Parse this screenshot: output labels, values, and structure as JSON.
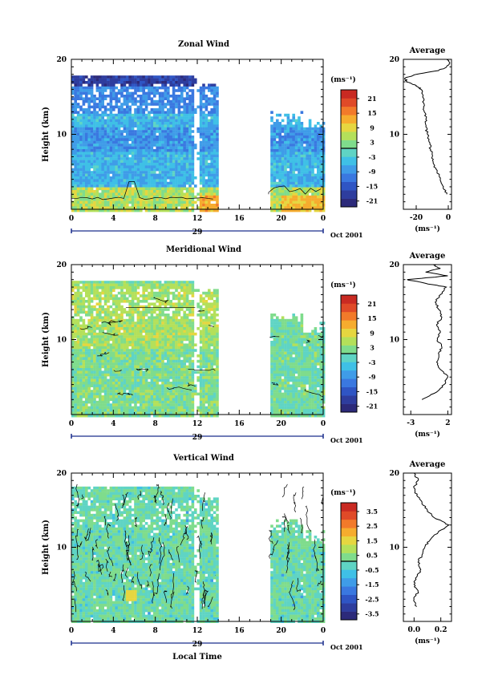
{
  "chart_data": [
    {
      "type": "heatmap",
      "title": "Zonal Wind",
      "ylabel": "Height (km)",
      "ylim": [
        0,
        20
      ],
      "xlim": [
        0,
        24
      ],
      "x_ticks": [
        "0",
        "4",
        "8",
        "12",
        "16",
        "20",
        "0"
      ],
      "y_ticks": [
        "20",
        "10"
      ],
      "date_label": "29",
      "month_label": "Oct 2001",
      "colorbar": {
        "unit": "(ms⁻¹)",
        "ticks": [
          "21",
          "15",
          "9",
          "3",
          "-3",
          "-9",
          "-15",
          "-21"
        ],
        "range": [
          -24,
          24
        ],
        "zero_line": true
      },
      "data_gaps_hours": [
        [
          13.8,
          18.8
        ]
      ],
      "profile": {
        "title": "Average",
        "xlabel": "(ms⁻¹)",
        "x_ticks": [
          "-20",
          "0"
        ],
        "xlim": [
          -28,
          2
        ],
        "y_ticks": [
          "20",
          "10"
        ],
        "heights_km": [
          2,
          3,
          4,
          5,
          6,
          7,
          8,
          9,
          10,
          11,
          12,
          13,
          14,
          15,
          16,
          16.5,
          17,
          17.5,
          18,
          18.5,
          19,
          19.5,
          20
        ],
        "values": [
          -1,
          -3,
          -5,
          -7,
          -9,
          -10,
          -11,
          -12,
          -13,
          -14,
          -14,
          -15,
          -15,
          -16,
          -17,
          -20,
          -26,
          -27,
          -20,
          -6,
          -1,
          1,
          0
        ]
      }
    },
    {
      "type": "heatmap",
      "title": "Meridional Wind",
      "ylabel": "Height (km)",
      "ylim": [
        0,
        20
      ],
      "xlim": [
        0,
        24
      ],
      "x_ticks": [
        "0",
        "4",
        "8",
        "12",
        "16",
        "20",
        "0"
      ],
      "y_ticks": [
        "20",
        "10"
      ],
      "date_label": "29",
      "month_label": "Oct 2001",
      "colorbar": {
        "unit": "(ms⁻¹)",
        "ticks": [
          "21",
          "15",
          "9",
          "3",
          "-3",
          "-9",
          "-15",
          "-21"
        ],
        "range": [
          -24,
          24
        ],
        "zero_line": true
      },
      "data_gaps_hours": [
        [
          13.8,
          18.8
        ]
      ],
      "profile": {
        "title": "Average",
        "xlabel": "(ms⁻¹)",
        "x_ticks": [
          "-3",
          "2"
        ],
        "xlim": [
          -4,
          2.5
        ],
        "y_ticks": [
          "20",
          "10"
        ],
        "heights_km": [
          2,
          3,
          4,
          5,
          6,
          7,
          8,
          9,
          10,
          11,
          12,
          13,
          14,
          15,
          16,
          17,
          17.5,
          18,
          18.5,
          19,
          19.5,
          20
        ],
        "values": [
          -1.5,
          0.5,
          1.5,
          2,
          1,
          0.5,
          0.8,
          1.2,
          0.6,
          1.0,
          0.5,
          1.2,
          0.8,
          0.3,
          1.0,
          1.8,
          -1,
          -3.5,
          2,
          -1,
          1,
          0
        ]
      }
    },
    {
      "type": "heatmap",
      "title": "Vertical Wind",
      "ylabel": "Height (km)",
      "ylim": [
        0,
        20
      ],
      "xlim": [
        0,
        24
      ],
      "x_ticks": [
        "0",
        "4",
        "8",
        "12",
        "16",
        "20",
        "0"
      ],
      "y_ticks": [
        "20",
        "10"
      ],
      "date_label": "29",
      "month_label": "Oct 2001",
      "xlabel": "Local Time",
      "colorbar": {
        "unit": "(ms⁻¹)",
        "ticks": [
          "3.5",
          "2.5",
          "1.5",
          "0.5",
          "-0.5",
          "-1.5",
          "-2.5",
          "-3.5"
        ],
        "range": [
          -4,
          4
        ],
        "zero_line": true
      },
      "data_gaps_hours": [
        [
          13.8,
          18.8
        ]
      ],
      "profile": {
        "title": "Average",
        "xlabel": "(ms⁻¹)",
        "x_ticks": [
          "0.0",
          "0.2"
        ],
        "xlim": [
          -0.08,
          0.28
        ],
        "y_ticks": [
          "20",
          "10"
        ],
        "heights_km": [
          2,
          3,
          4,
          5,
          6,
          7,
          8,
          9,
          10,
          11,
          12,
          13,
          14,
          15,
          16,
          17,
          18,
          19,
          20
        ],
        "values": [
          0.02,
          0.0,
          0.03,
          0.0,
          0.02,
          0.05,
          0.03,
          0.06,
          0.08,
          0.12,
          0.18,
          0.26,
          0.15,
          0.1,
          0.06,
          0.02,
          0.0,
          0.03,
          0.0
        ]
      }
    }
  ]
}
